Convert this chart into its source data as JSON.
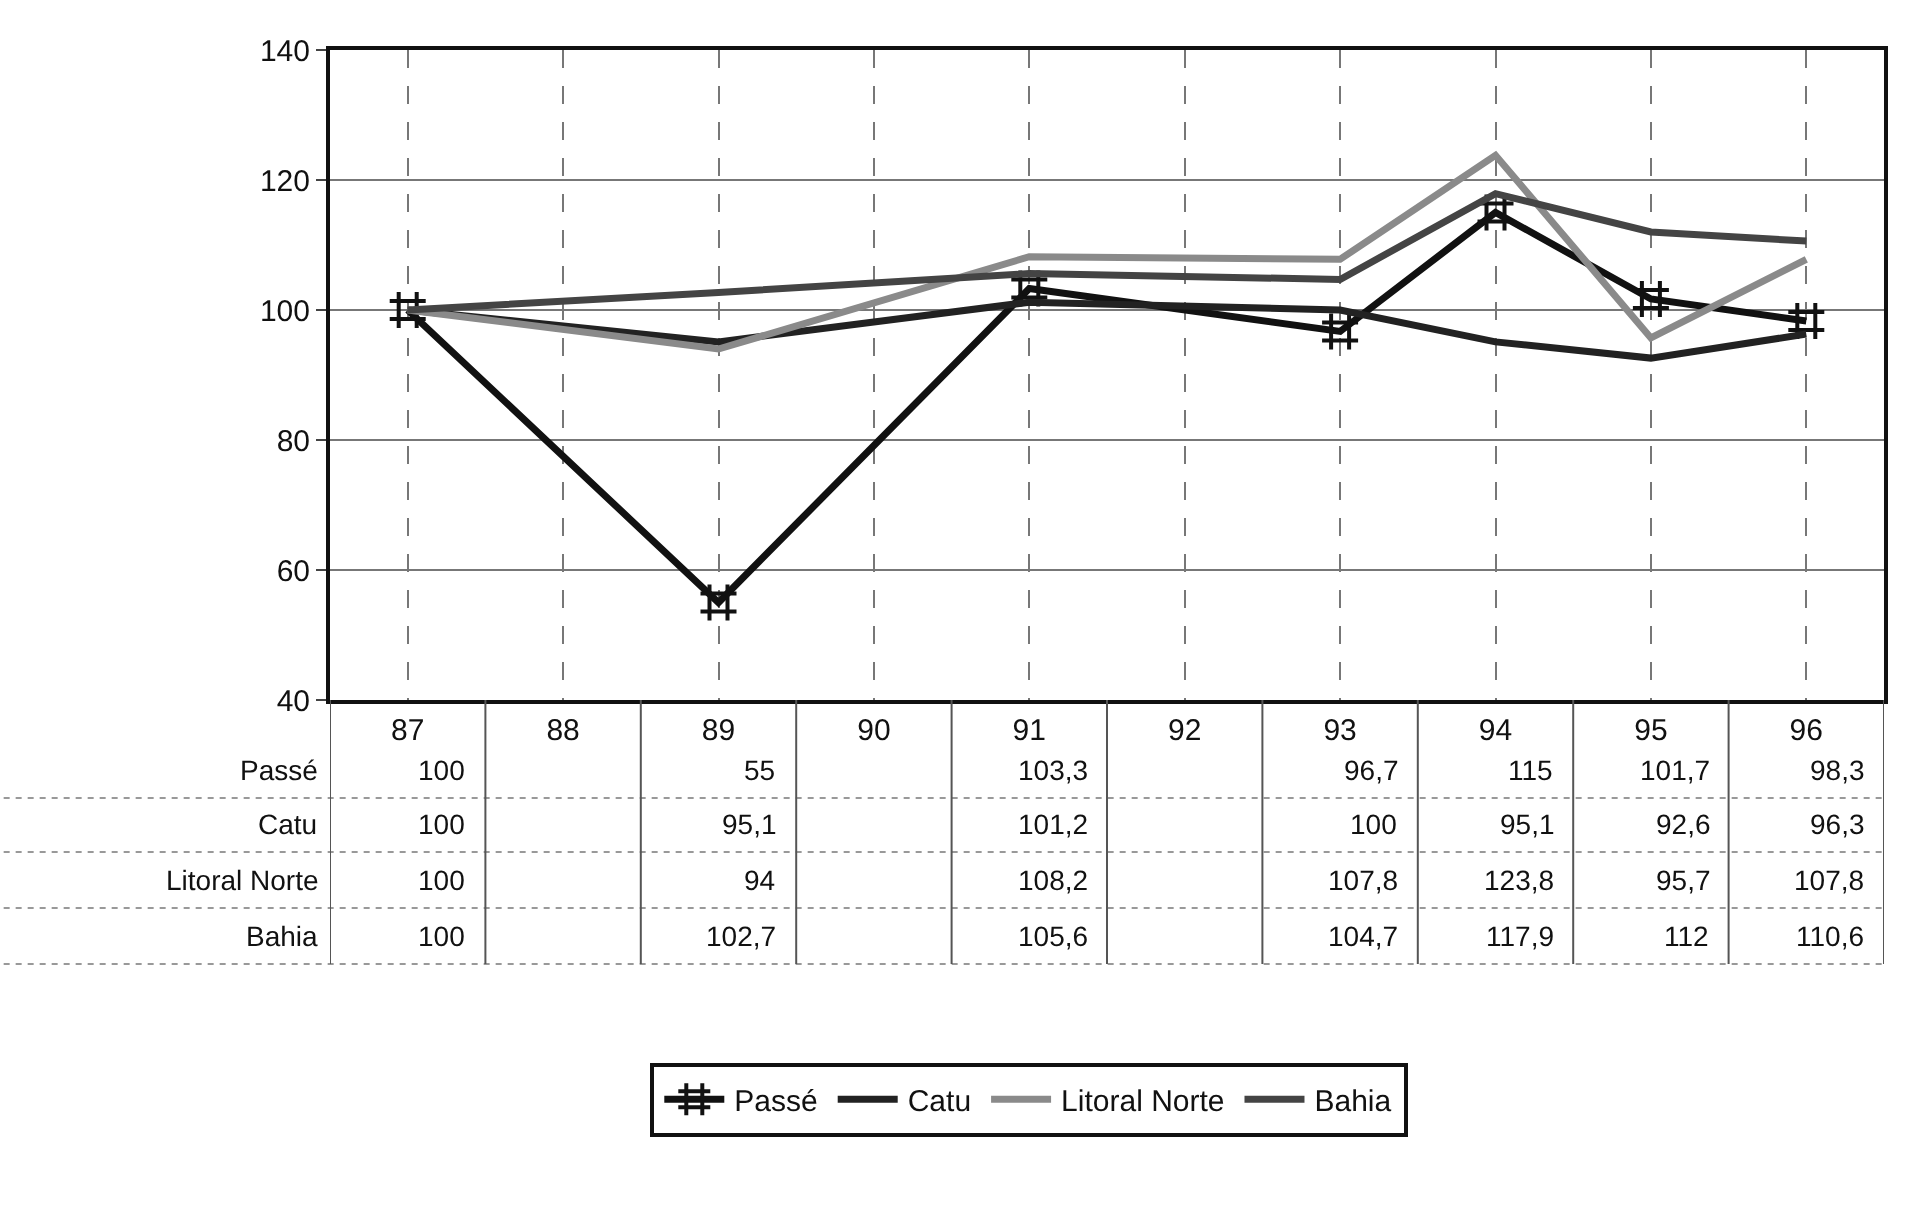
{
  "chart_data": {
    "type": "line",
    "categories": [
      "87",
      "88",
      "89",
      "90",
      "91",
      "92",
      "93",
      "94",
      "95",
      "96"
    ],
    "series": [
      {
        "name": "Passé",
        "color": "#111111",
        "marker": "cross",
        "values": [
          100,
          null,
          55,
          null,
          103.3,
          null,
          96.7,
          115,
          101.7,
          98.3
        ],
        "value_labels": [
          "100",
          null,
          "55",
          null,
          "103,3",
          null,
          "96,7",
          "115",
          "101,7",
          "98,3"
        ]
      },
      {
        "name": "Catu",
        "color": "#222222",
        "marker": "none",
        "values": [
          100,
          null,
          95.1,
          null,
          101.2,
          null,
          100,
          95.1,
          92.6,
          96.3
        ],
        "value_labels": [
          "100",
          null,
          "95,1",
          null,
          "101,2",
          null,
          "100",
          "95,1",
          "92,6",
          "96,3"
        ]
      },
      {
        "name": "Litoral Norte",
        "color": "#8a8a8a",
        "marker": "none",
        "values": [
          100,
          null,
          94,
          null,
          108.2,
          null,
          107.8,
          123.8,
          95.7,
          107.8
        ],
        "value_labels": [
          "100",
          null,
          "94",
          null,
          "108,2",
          null,
          "107,8",
          "123,8",
          "95,7",
          "107,8"
        ]
      },
      {
        "name": "Bahia",
        "color": "#444444",
        "marker": "none",
        "values": [
          100,
          null,
          102.7,
          null,
          105.6,
          null,
          104.7,
          117.9,
          112,
          110.6
        ],
        "value_labels": [
          "100",
          null,
          "102,7",
          null,
          "105,6",
          null,
          "104,7",
          "117,9",
          "112",
          "110,6"
        ]
      }
    ],
    "ylim": [
      40,
      140
    ],
    "yticks": [
      40,
      60,
      80,
      100,
      120,
      140
    ],
    "grid": true,
    "legend": "bottom",
    "line_style": "solid"
  }
}
